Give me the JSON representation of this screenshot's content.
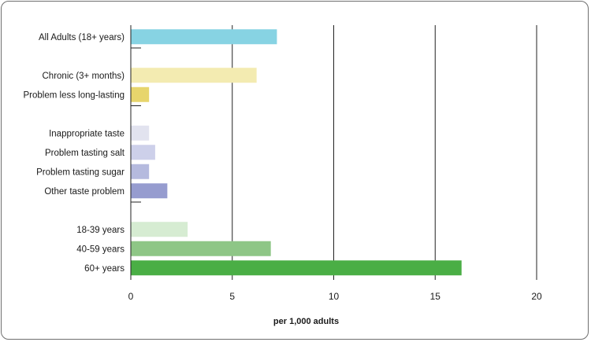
{
  "chart_data": {
    "type": "bar",
    "orientation": "horizontal",
    "xlabel": "per 1,000 adults",
    "xlim": [
      0,
      20
    ],
    "xticks": [
      0,
      5,
      10,
      15,
      20
    ],
    "grid": "vertical",
    "groups": [
      {
        "bars": [
          {
            "label": "All Adults (18+ years)",
            "value": 7.2,
            "color": "#87d3e3"
          }
        ]
      },
      {
        "bars": [
          {
            "label": "Chronic (3+ months)",
            "value": 6.2,
            "color": "#f3ebb1"
          },
          {
            "label": "Problem less long-lasting",
            "value": 0.9,
            "color": "#e7d56c"
          }
        ]
      },
      {
        "bars": [
          {
            "label": "Inappropriate taste",
            "value": 0.9,
            "color": "#e2e3ef"
          },
          {
            "label": "Problem tasting salt",
            "value": 1.2,
            "color": "#cdd0ea"
          },
          {
            "label": "Problem tasting sugar",
            "value": 0.9,
            "color": "#b5bade"
          },
          {
            "label": "Other taste problem",
            "value": 1.8,
            "color": "#969ccf"
          }
        ]
      },
      {
        "bars": [
          {
            "label": "18-39 years",
            "value": 2.8,
            "color": "#d6ecd2"
          },
          {
            "label": "40-59 years",
            "value": 6.9,
            "color": "#8ec686"
          },
          {
            "label": "60+ years",
            "value": 16.3,
            "color": "#4aae45"
          }
        ]
      }
    ]
  }
}
